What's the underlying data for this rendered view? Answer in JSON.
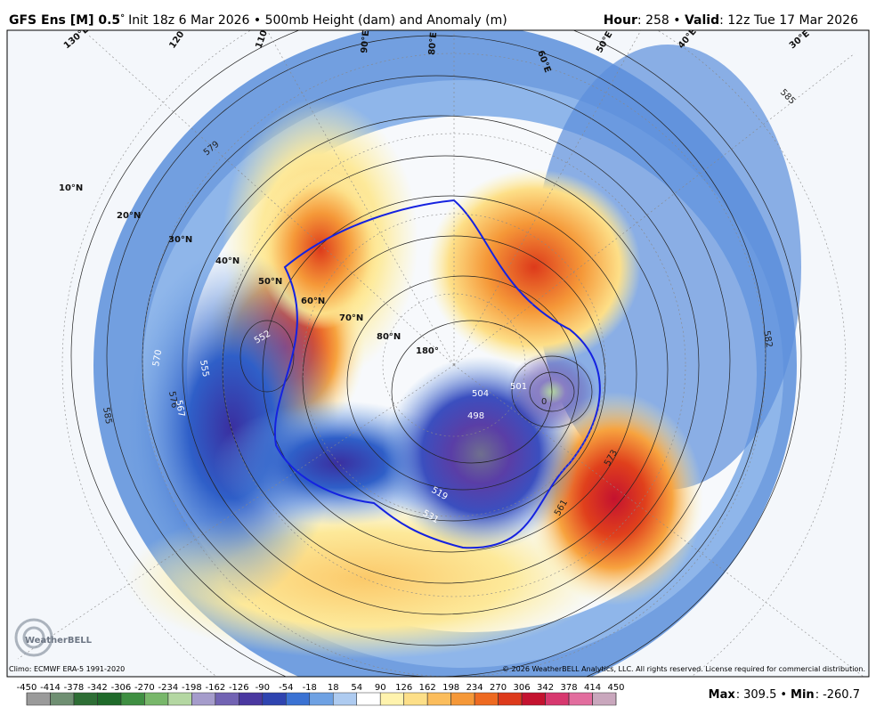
{
  "header": {
    "model": "GFS Ens [M] 0.5",
    "degree": "°",
    "description": "Init 18z 6 Mar 2026 • 500mb Height (dam) and Anomaly (m)",
    "hour_label": "Hour",
    "hour_value": ": 258 • ",
    "valid_label": "Valid",
    "valid_value": ": 12z Tue 17 Mar 2026"
  },
  "map": {
    "latitude_labels": [
      "10°N",
      "20°N",
      "30°N",
      "40°N",
      "50°N",
      "60°N",
      "70°N",
      "80°N",
      "180°"
    ],
    "longitude_labels": [
      "130°E",
      "120°E",
      "110°E",
      "90°E",
      "80°E",
      "60°E",
      "50°E",
      "40°E",
      "30°E"
    ],
    "contour_labels": [
      "552",
      "579",
      "570",
      "555",
      "576",
      "567",
      "585",
      "498",
      "504",
      "501",
      "519",
      "531",
      "573",
      "561",
      "582",
      "585",
      "0"
    ]
  },
  "logo": "WeatherBELL",
  "footer": {
    "climo": "Climo: ECMWF ERA-5 1991-2020",
    "copyright": "© 2026 WeatherBELL Analytics, LLC. All rights reserved. License required for commercial distribution."
  },
  "colorbar": {
    "ticks": [
      -450,
      -414,
      -378,
      -342,
      -306,
      -270,
      -234,
      -198,
      -162,
      -126,
      -90,
      -54,
      -18,
      18,
      54,
      90,
      126,
      162,
      198,
      234,
      270,
      306,
      342,
      378,
      414,
      450
    ],
    "colors": [
      "#9a9a9a",
      "#6f8f72",
      "#2e6e35",
      "#1f6a2a",
      "#3f8f42",
      "#78b76a",
      "#b4d7a2",
      "#a59ccb",
      "#7263b3",
      "#4a38a0",
      "#2f44b0",
      "#3b72d3",
      "#6ea1e3",
      "#aecbf0",
      "#ffffff",
      "#fff3ad",
      "#fddf88",
      "#fbbd5c",
      "#f59838",
      "#ee6a21",
      "#dd3a1b",
      "#c4122f",
      "#d7386f",
      "#e26d9e",
      "#c9a7bd"
    ]
  },
  "stats": {
    "max_label": "Max",
    "max_value": "309.5",
    "separator": "•",
    "min_label": "Min",
    "min_value": "-260.7"
  }
}
